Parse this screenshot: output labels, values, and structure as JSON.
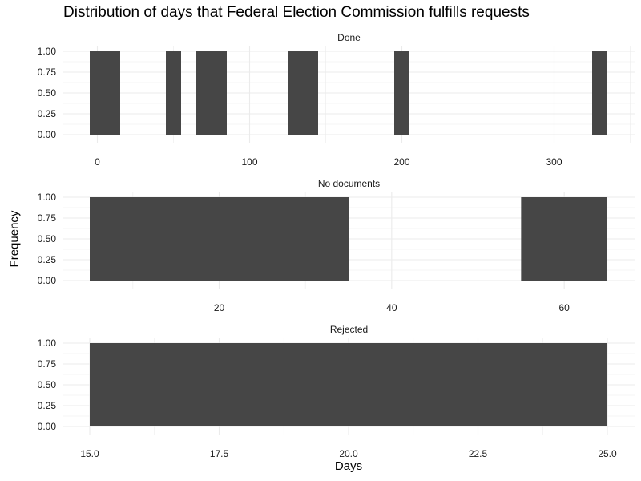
{
  "chart_data": {
    "type": "bar",
    "title": "Distribution of days that Federal Election Commission fulfills requests",
    "xlabel": "Days",
    "ylabel": "Frequency",
    "facets": [
      {
        "name": "Done",
        "xlim": [
          -5,
          335
        ],
        "ylim": [
          0,
          1
        ],
        "x_ticks": [
          0,
          100,
          200,
          300
        ],
        "y_ticks": [
          0.0,
          0.25,
          0.5,
          0.75,
          1.0
        ],
        "y_tick_labels": [
          "0.00",
          "0.25",
          "0.50",
          "0.75",
          "1.00"
        ],
        "bars": [
          {
            "x0": -5,
            "x1": 15,
            "y": 1
          },
          {
            "x0": 45,
            "x1": 55,
            "y": 1
          },
          {
            "x0": 65,
            "x1": 85,
            "y": 1
          },
          {
            "x0": 125,
            "x1": 145,
            "y": 1
          },
          {
            "x0": 195,
            "x1": 205,
            "y": 1
          },
          {
            "x0": 325,
            "x1": 335,
            "y": 1
          }
        ]
      },
      {
        "name": "No documents",
        "xlim": [
          5,
          65
        ],
        "ylim": [
          0,
          1
        ],
        "x_ticks": [
          20,
          40,
          60
        ],
        "y_ticks": [
          0.0,
          0.25,
          0.5,
          0.75,
          1.0
        ],
        "y_tick_labels": [
          "0.00",
          "0.25",
          "0.50",
          "0.75",
          "1.00"
        ],
        "bars": [
          {
            "x0": 5,
            "x1": 35,
            "y": 1
          },
          {
            "x0": 55,
            "x1": 65,
            "y": 1
          }
        ]
      },
      {
        "name": "Rejected",
        "xlim": [
          15,
          25
        ],
        "ylim": [
          0,
          1
        ],
        "x_ticks": [
          15.0,
          17.5,
          20.0,
          22.5,
          25.0
        ],
        "x_tick_labels": [
          "15.0",
          "17.5",
          "20.0",
          "22.5",
          "25.0"
        ],
        "y_ticks": [
          0.0,
          0.25,
          0.5,
          0.75,
          1.0
        ],
        "y_tick_labels": [
          "0.00",
          "0.25",
          "0.50",
          "0.75",
          "1.00"
        ],
        "bars": [
          {
            "x0": 15,
            "x1": 25,
            "y": 1
          }
        ]
      }
    ],
    "grid": true,
    "bar_color": "#464646",
    "grid_color": "#ebebeb"
  }
}
